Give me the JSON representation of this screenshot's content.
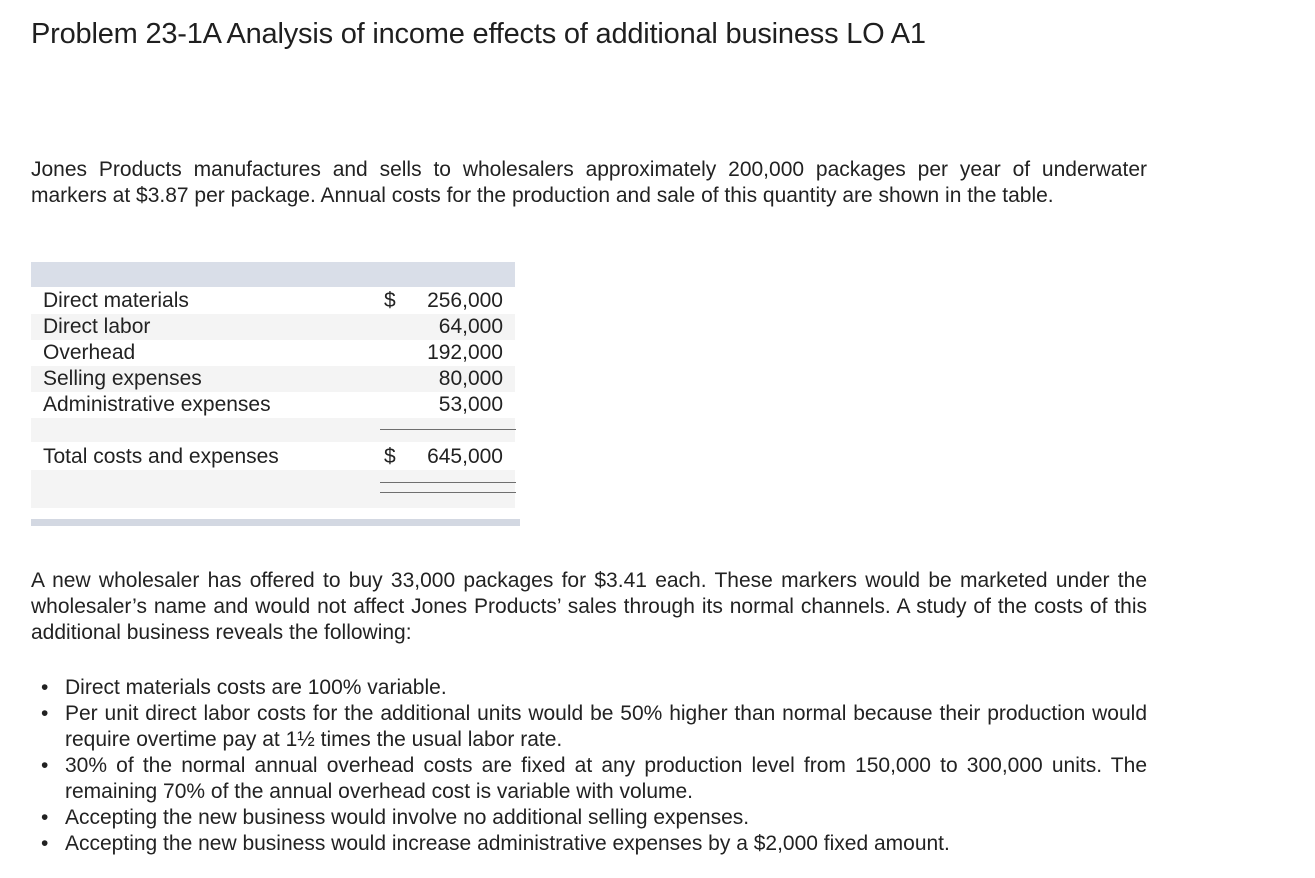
{
  "title": "Problem 23-1A Analysis of income effects of additional business LO A1",
  "intro": "Jones Products manufactures and sells to wholesalers approximately 200,000 packages per year of underwater markers at $3.87 per package. Annual costs for the production and sale of this quantity are shown in the table.",
  "cost_table": {
    "rows": [
      {
        "label": "Direct materials",
        "currency": "$",
        "amount": "256,000"
      },
      {
        "label": "Direct labor",
        "currency": "",
        "amount": "64,000"
      },
      {
        "label": "Overhead",
        "currency": "",
        "amount": "192,000"
      },
      {
        "label": "Selling expenses",
        "currency": "",
        "amount": "80,000"
      },
      {
        "label": "Administrative expenses",
        "currency": "",
        "amount": "53,000"
      }
    ],
    "total": {
      "label": "Total costs and expenses",
      "currency": "$",
      "amount": "645,000"
    }
  },
  "offer": "A new wholesaler has offered to buy 33,000 packages for $3.41 each. These markers would be marketed under the wholesaler’s name and would not affect Jones Products’ sales through its normal channels. A study of the costs of this additional business reveals the following:",
  "bullets": [
    "Direct materials costs are 100% variable.",
    "Per unit direct labor costs for the additional units would be 50% higher than normal because their production would require overtime pay at 1½ times the usual labor rate.",
    "30% of the normal annual overhead costs are fixed at any production level from 150,000 to 300,000 units. The remaining 70% of the annual overhead cost is variable with volume.",
    "Accepting the new business would involve no additional selling expenses.",
    "Accepting the new business would increase administrative expenses by a $2,000 fixed amount."
  ],
  "bullet_glyph": "•"
}
